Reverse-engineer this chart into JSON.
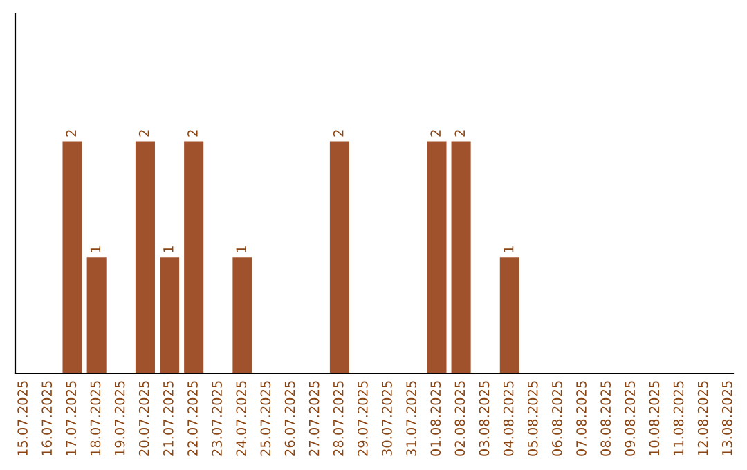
{
  "chart_data": {
    "type": "bar",
    "categories": [
      "15.07.2025",
      "16.07.2025",
      "17.07.2025",
      "18.07.2025",
      "19.07.2025",
      "20.07.2025",
      "21.07.2025",
      "22.07.2025",
      "23.07.2025",
      "24.07.2025",
      "25.07.2025",
      "26.07.2025",
      "27.07.2025",
      "28.07.2025",
      "29.07.2025",
      "30.07.2025",
      "31.07.2025",
      "01.08.2025",
      "02.08.2025",
      "03.08.2025",
      "04.08.2025",
      "05.08.2025",
      "06.08.2025",
      "07.08.2025",
      "08.08.2025",
      "09.08.2025",
      "10.08.2025",
      "11.08.2025",
      "12.08.2025",
      "13.08.2025"
    ],
    "values": [
      0,
      0,
      2,
      1,
      0,
      2,
      1,
      2,
      0,
      1,
      0,
      0,
      0,
      2,
      0,
      0,
      0,
      2,
      2,
      0,
      1,
      0,
      0,
      0,
      0,
      0,
      0,
      0,
      0,
      0
    ],
    "value_labels": [
      null,
      null,
      "2",
      "1",
      null,
      "2",
      "1",
      "2",
      null,
      "1",
      null,
      null,
      null,
      "2",
      null,
      null,
      null,
      "2",
      "2",
      null,
      "1",
      null,
      null,
      null,
      null,
      null,
      null,
      null,
      null,
      null
    ],
    "color": "#a0522d",
    "ylim": [
      0,
      3.1
    ],
    "tick_labels": "x",
    "grid": false,
    "legend": false
  }
}
